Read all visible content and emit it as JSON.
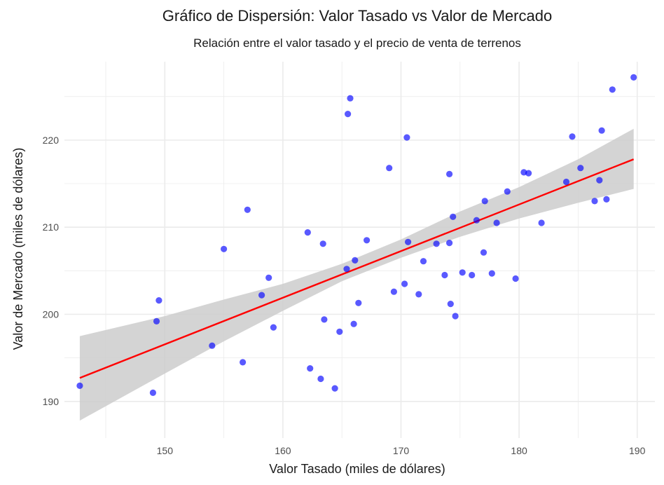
{
  "chart_data": {
    "type": "scatter",
    "title": "Gráfico de Dispersión: Valor Tasado vs Valor de Mercado",
    "subtitle": "Relación entre el valor tasado y el precio de venta de terrenos",
    "xlabel": "Valor Tasado (miles de dólares)",
    "ylabel": "Valor de Mercado (miles de dólares)",
    "xlim": [
      141.5,
      191.5
    ],
    "ylim": [
      185.8,
      229.0
    ],
    "xticks": [
      150,
      160,
      170,
      180,
      190
    ],
    "yticks": [
      190,
      200,
      210,
      220
    ],
    "grid": true,
    "legend": "none",
    "colors": {
      "points": "#0000ff",
      "trend": "#ff0000",
      "band": "#cccccc",
      "grid": "#ebebeb"
    },
    "points": [
      [
        142.8,
        191.8
      ],
      [
        149.0,
        191.0
      ],
      [
        149.3,
        199.2
      ],
      [
        149.5,
        201.6
      ],
      [
        154.0,
        196.4
      ],
      [
        155.0,
        207.5
      ],
      [
        156.6,
        194.5
      ],
      [
        157.0,
        212.0
      ],
      [
        158.2,
        202.2
      ],
      [
        158.8,
        204.2
      ],
      [
        159.2,
        198.5
      ],
      [
        162.1,
        209.4
      ],
      [
        162.3,
        193.8
      ],
      [
        163.2,
        192.6
      ],
      [
        163.4,
        208.1
      ],
      [
        163.5,
        199.4
      ],
      [
        164.4,
        191.5
      ],
      [
        164.8,
        198.0
      ],
      [
        165.4,
        205.2
      ],
      [
        165.5,
        223.0
      ],
      [
        165.7,
        224.8
      ],
      [
        166.0,
        198.9
      ],
      [
        166.1,
        206.2
      ],
      [
        166.4,
        201.3
      ],
      [
        167.1,
        208.5
      ],
      [
        169.0,
        216.8
      ],
      [
        169.4,
        202.6
      ],
      [
        170.3,
        203.5
      ],
      [
        170.5,
        220.3
      ],
      [
        170.6,
        208.3
      ],
      [
        171.5,
        202.3
      ],
      [
        171.9,
        206.1
      ],
      [
        173.0,
        208.1
      ],
      [
        173.7,
        204.5
      ],
      [
        174.1,
        208.2
      ],
      [
        174.1,
        216.1
      ],
      [
        174.2,
        201.2
      ],
      [
        174.4,
        211.2
      ],
      [
        174.6,
        199.8
      ],
      [
        175.2,
        204.8
      ],
      [
        176.0,
        204.5
      ],
      [
        176.4,
        210.8
      ],
      [
        177.0,
        207.1
      ],
      [
        177.1,
        213.0
      ],
      [
        177.7,
        204.7
      ],
      [
        178.1,
        210.5
      ],
      [
        179.0,
        214.1
      ],
      [
        179.7,
        204.1
      ],
      [
        180.4,
        216.3
      ],
      [
        180.8,
        216.2
      ],
      [
        181.9,
        210.5
      ],
      [
        184.0,
        215.2
      ],
      [
        184.5,
        220.4
      ],
      [
        185.2,
        216.8
      ],
      [
        186.4,
        213.0
      ],
      [
        186.8,
        215.4
      ],
      [
        187.0,
        221.1
      ],
      [
        187.4,
        213.2
      ],
      [
        187.9,
        225.8
      ],
      [
        189.7,
        227.2
      ]
    ],
    "trend_line": {
      "x": [
        142.8,
        189.7
      ],
      "y": [
        192.7,
        217.8
      ]
    },
    "confidence_band": [
      [
        142.8,
        187.8,
        197.5
      ],
      [
        150.0,
        193.2,
        199.8
      ],
      [
        155.0,
        196.9,
        201.7
      ],
      [
        160.0,
        200.4,
        203.5
      ],
      [
        165.0,
        203.8,
        205.8
      ],
      [
        170.0,
        206.5,
        208.6
      ],
      [
        175.0,
        208.9,
        211.8
      ],
      [
        180.0,
        211.0,
        214.6
      ],
      [
        185.0,
        212.8,
        217.8
      ],
      [
        189.7,
        214.4,
        221.3
      ]
    ]
  }
}
